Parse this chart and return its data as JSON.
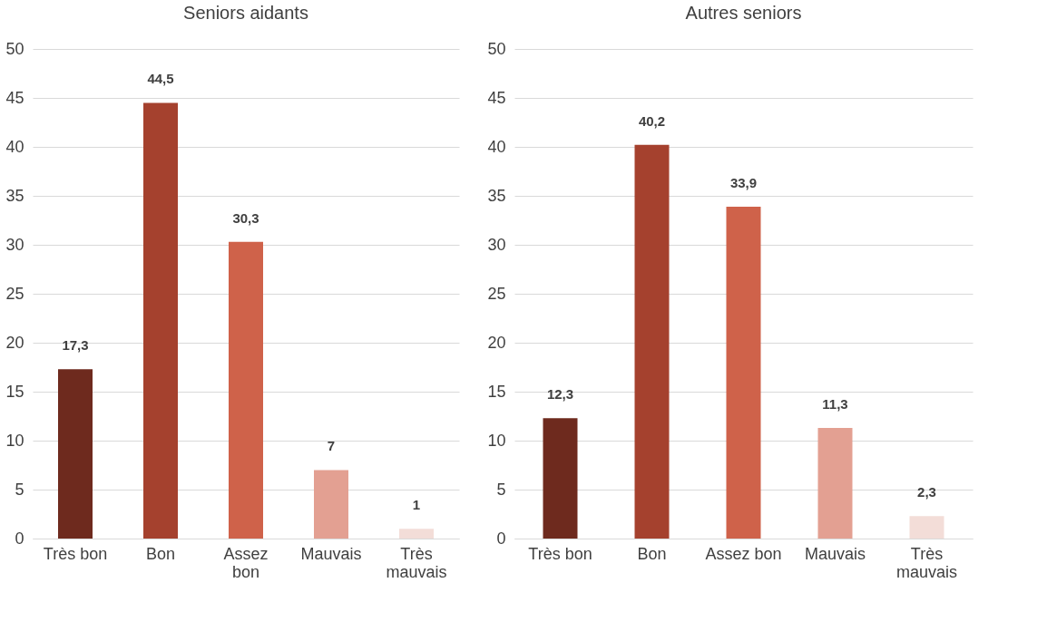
{
  "chart_data": [
    {
      "type": "bar",
      "title": "Seniors aidants",
      "categories": [
        "Très bon",
        "Bon",
        "Assez bon",
        "Mauvais",
        "Très mauvais"
      ],
      "values": [
        17.3,
        44.5,
        30.3,
        7,
        1
      ],
      "value_labels": [
        "17,3",
        "44,5",
        "30,3",
        "7",
        "1"
      ],
      "colors": [
        "#6e2a1e",
        "#a5412e",
        "#cf624a",
        "#e3a092",
        "#f3ddd8"
      ],
      "ylim": [
        0,
        50
      ],
      "yticks": [
        0,
        5,
        10,
        15,
        20,
        25,
        30,
        35,
        40,
        45,
        50
      ],
      "grid": "y"
    },
    {
      "type": "bar",
      "title": "Autres seniors",
      "categories": [
        "Très bon",
        "Bon",
        "Assez bon",
        "Mauvais",
        "Très mauvais"
      ],
      "values": [
        12.3,
        40.2,
        33.9,
        11.3,
        2.3
      ],
      "value_labels": [
        "12,3",
        "40,2",
        "33,9",
        "11,3",
        "2,3"
      ],
      "colors": [
        "#6e2a1e",
        "#a5412e",
        "#cf624a",
        "#e3a092",
        "#f3ddd8"
      ],
      "ylim": [
        0,
        50
      ],
      "yticks": [
        0,
        5,
        10,
        15,
        20,
        25,
        30,
        35,
        40,
        45,
        50
      ],
      "grid": "y"
    }
  ]
}
